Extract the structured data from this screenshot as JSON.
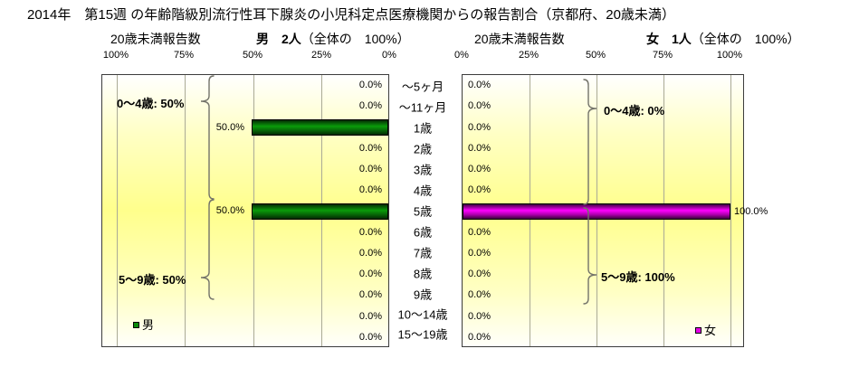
{
  "title": "2014年　第15週 の年齢階級別流行性耳下腺炎の小児科定点医療機関からの報告割合（京都府、20歳未満）",
  "male": {
    "report_label": "20歳未満報告数",
    "count": "男　2人",
    "share": "（全体の　100%）",
    "ticks": [
      "100%",
      "75%",
      "50%",
      "25%",
      "0%"
    ],
    "bracket_top": "0〜4歳: 50%",
    "bracket_bottom": "5〜9歳: 50%",
    "legend": "男"
  },
  "female": {
    "report_label": "20歳未満報告数",
    "count": "女　1人",
    "share": "（全体の　100%）",
    "ticks": [
      "0%",
      "25%",
      "50%",
      "75%",
      "100%"
    ],
    "bracket_top": "0〜4歳: 0%",
    "bracket_bottom": "5〜9歳: 100%",
    "legend": "女"
  },
  "colors": {
    "male_bar": "#007a00",
    "female_bar": "#ff00ff",
    "plot_background_peak": "#ffff8c",
    "gridline": "#aaaa96"
  },
  "chart_data": [
    {
      "type": "bar",
      "orientation": "horizontal",
      "series_name": "男",
      "title": "男 2人（全体の 100%）",
      "categories": [
        "〜5ヶ月",
        "〜11ヶ月",
        "1歳",
        "2歳",
        "3歳",
        "4歳",
        "5歳",
        "6歳",
        "7歳",
        "8歳",
        "9歳",
        "10〜14歳",
        "15〜19歳"
      ],
      "values": [
        0,
        0,
        50,
        0,
        0,
        0,
        50,
        0,
        0,
        0,
        0,
        0,
        0
      ],
      "value_labels": [
        "0.0%",
        "0.0%",
        "50.0%",
        "0.0%",
        "0.0%",
        "0.0%",
        "50.0%",
        "0.0%",
        "0.0%",
        "0.0%",
        "0.0%",
        "0.0%",
        "0.0%"
      ],
      "xlim": [
        0,
        100
      ],
      "axis_reversed": true,
      "grid": true,
      "annotations": [
        "0〜4歳: 50%",
        "5〜9歳: 50%"
      ],
      "bar_color": "#007a00"
    },
    {
      "type": "bar",
      "orientation": "horizontal",
      "series_name": "女",
      "title": "女 1人（全体の 100%）",
      "categories": [
        "〜5ヶ月",
        "〜11ヶ月",
        "1歳",
        "2歳",
        "3歳",
        "4歳",
        "5歳",
        "6歳",
        "7歳",
        "8歳",
        "9歳",
        "10〜14歳",
        "15〜19歳"
      ],
      "values": [
        0,
        0,
        0,
        0,
        0,
        0,
        100,
        0,
        0,
        0,
        0,
        0,
        0
      ],
      "value_labels": [
        "0.0%",
        "0.0%",
        "0.0%",
        "0.0%",
        "0.0%",
        "0.0%",
        "100.0%",
        "0.0%",
        "0.0%",
        "0.0%",
        "0.0%",
        "0.0%",
        "0.0%"
      ],
      "xlim": [
        0,
        100
      ],
      "axis_reversed": false,
      "grid": true,
      "annotations": [
        "0〜4歳: 0%",
        "5〜9歳: 100%"
      ],
      "bar_color": "#ff00ff"
    }
  ]
}
